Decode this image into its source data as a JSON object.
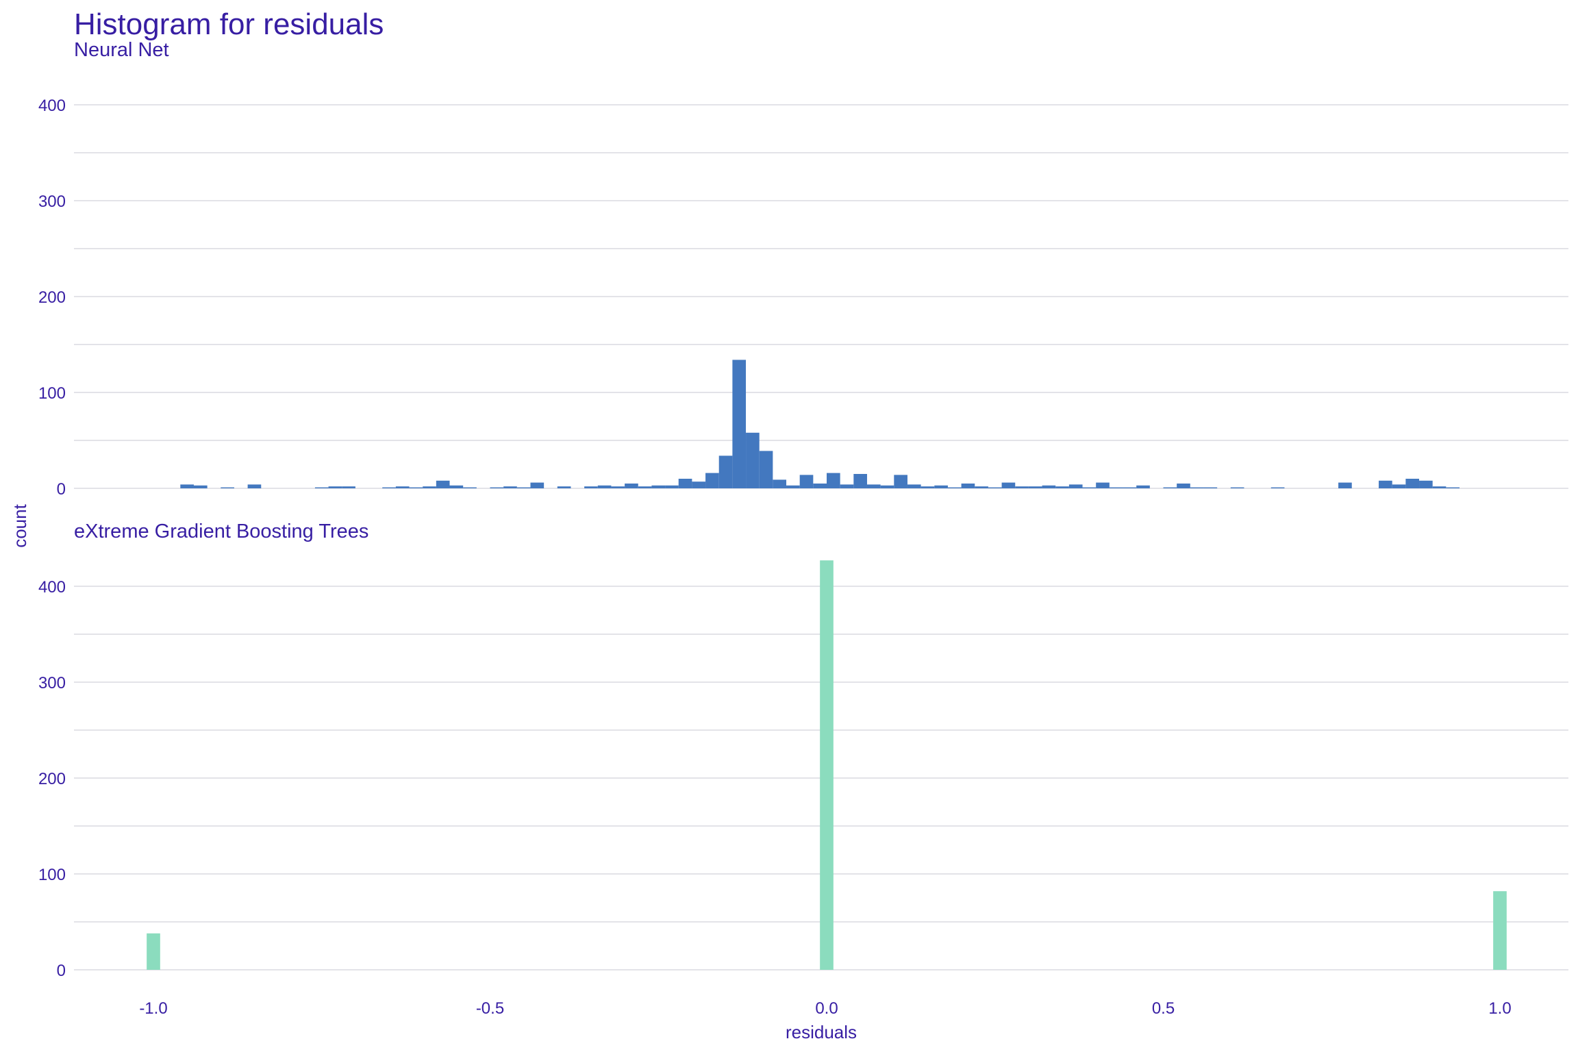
{
  "chart_data": {
    "type": "bar",
    "title": "Histogram for residuals",
    "xlabel": "residuals",
    "ylabel": "count",
    "xlim": [
      -1.1,
      1.1
    ],
    "x_ticks": [
      -1.0,
      -0.5,
      0.0,
      0.5,
      1.0
    ],
    "x_tick_labels": [
      "-1.0",
      "-0.5",
      "0.0",
      "0.5",
      "1.0"
    ],
    "ylim": [
      0,
      400
    ],
    "y_ticks": [
      0,
      100,
      200,
      300,
      400
    ],
    "y_tick_labels": [
      "0",
      "100",
      "200",
      "300",
      "400"
    ],
    "grid": true,
    "bin_width": 0.02,
    "panels": [
      {
        "name": "Neural Net",
        "color": "#4378bf",
        "series": {
          "x": [
            -0.95,
            -0.93,
            -0.89,
            -0.85,
            -0.75,
            -0.73,
            -0.71,
            -0.65,
            -0.63,
            -0.61,
            -0.59,
            -0.57,
            -0.55,
            -0.53,
            -0.49,
            -0.47,
            -0.45,
            -0.43,
            -0.39,
            -0.35,
            -0.33,
            -0.31,
            -0.29,
            -0.27,
            -0.25,
            -0.23,
            -0.21,
            -0.19,
            -0.17,
            -0.15,
            -0.13,
            -0.11,
            -0.09,
            -0.07,
            -0.05,
            -0.03,
            -0.01,
            0.01,
            0.03,
            0.05,
            0.07,
            0.09,
            0.11,
            0.13,
            0.15,
            0.17,
            0.19,
            0.21,
            0.23,
            0.25,
            0.27,
            0.29,
            0.31,
            0.33,
            0.35,
            0.37,
            0.39,
            0.41,
            0.43,
            0.45,
            0.47,
            0.51,
            0.53,
            0.55,
            0.57,
            0.61,
            0.67,
            0.77,
            0.83,
            0.85,
            0.87,
            0.89,
            0.91,
            0.93
          ],
          "y": [
            4,
            3,
            1,
            4,
            1,
            2,
            2,
            1,
            2,
            1,
            2,
            8,
            3,
            1,
            1,
            2,
            1,
            6,
            2,
            2,
            3,
            2,
            5,
            2,
            3,
            3,
            10,
            7,
            16,
            34,
            134,
            58,
            39,
            9,
            3,
            14,
            5,
            16,
            4,
            15,
            4,
            3,
            14,
            4,
            2,
            3,
            1,
            5,
            2,
            1,
            6,
            2,
            2,
            3,
            2,
            4,
            1,
            6,
            1,
            1,
            3,
            1,
            5,
            1,
            1,
            1,
            1,
            6,
            8,
            4,
            10,
            8,
            2,
            1
          ]
        }
      },
      {
        "name": "eXtreme Gradient Boosting Trees",
        "color": "#8bdcbe",
        "series": {
          "x": [
            -1.0,
            0.0,
            1.0
          ],
          "y": [
            38,
            427,
            82
          ]
        }
      }
    ]
  }
}
